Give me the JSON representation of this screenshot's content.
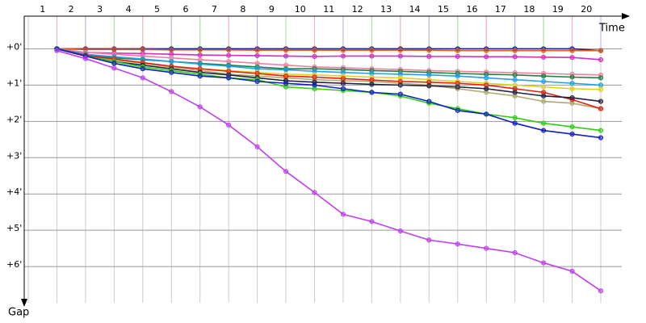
{
  "chart_data": {
    "type": "line",
    "x_label": "Time",
    "y_label": "Gap",
    "categories": [
      "1",
      "2",
      "3",
      "4",
      "5",
      "6",
      "7",
      "8",
      "9",
      "10",
      "11",
      "12",
      "13",
      "14",
      "15",
      "16",
      "17",
      "18",
      "19",
      "20"
    ],
    "ylim": [
      -0.9,
      7.0
    ],
    "yticks": [
      {
        "value": 0,
        "label": "+0'"
      },
      {
        "value": 1,
        "label": "+1'"
      },
      {
        "value": 2,
        "label": "+2'"
      },
      {
        "value": 3,
        "label": "+3'"
      },
      {
        "value": 4,
        "label": "+4'"
      },
      {
        "value": 5,
        "label": "+5'"
      },
      {
        "value": 6,
        "label": "+6'"
      }
    ],
    "grid": true,
    "series": [
      {
        "color": "#1a1aa0",
        "values": [
          0,
          0,
          0,
          0,
          0,
          0,
          0,
          0,
          0,
          0,
          0,
          0,
          0,
          0,
          0,
          0,
          0,
          0,
          0,
          0.05
        ]
      },
      {
        "color": "#e06010",
        "values": [
          0,
          0.02,
          0.02,
          0.02,
          0.03,
          0.03,
          0.03,
          0.04,
          0.04,
          0.04,
          0.04,
          0.04,
          0.04,
          0.04,
          0.05,
          0.05,
          0.05,
          0.05,
          0.05,
          0.05
        ]
      },
      {
        "color": "#d030c0",
        "values": [
          0,
          0.1,
          0.12,
          0.13,
          0.15,
          0.17,
          0.18,
          0.19,
          0.2,
          0.21,
          0.2,
          0.2,
          0.2,
          0.21,
          0.21,
          0.22,
          0.22,
          0.23,
          0.24,
          0.3
        ]
      },
      {
        "color": "#f080a0",
        "values": [
          0,
          0.1,
          0.15,
          0.2,
          0.25,
          0.3,
          0.35,
          0.4,
          0.45,
          0.5,
          0.52,
          0.55,
          0.57,
          0.6,
          0.62,
          0.64,
          0.66,
          0.68,
          0.7,
          0.72
        ]
      },
      {
        "color": "#208040",
        "values": [
          0,
          0.15,
          0.25,
          0.3,
          0.35,
          0.4,
          0.45,
          0.5,
          0.55,
          0.55,
          0.57,
          0.6,
          0.62,
          0.65,
          0.68,
          0.7,
          0.72,
          0.75,
          0.78,
          0.8
        ]
      },
      {
        "color": "#20a0f0",
        "values": [
          0,
          0.15,
          0.22,
          0.28,
          0.35,
          0.42,
          0.48,
          0.55,
          0.58,
          0.62,
          0.65,
          0.68,
          0.7,
          0.72,
          0.75,
          0.8,
          0.85,
          0.9,
          0.95,
          1.0
        ]
      },
      {
        "color": "#e0d020",
        "values": [
          0,
          0.2,
          0.3,
          0.4,
          0.5,
          0.55,
          0.6,
          0.65,
          0.7,
          0.72,
          0.75,
          0.78,
          0.8,
          0.85,
          0.9,
          0.95,
          1.0,
          1.05,
          1.1,
          1.12
        ]
      },
      {
        "color": "#b0a870",
        "values": [
          0,
          0.2,
          0.3,
          0.4,
          0.5,
          0.6,
          0.7,
          0.75,
          0.8,
          0.85,
          0.88,
          0.9,
          0.95,
          1.0,
          1.1,
          1.2,
          1.3,
          1.45,
          1.5,
          1.65
        ]
      },
      {
        "color": "#e02010",
        "values": [
          0,
          0.18,
          0.28,
          0.38,
          0.48,
          0.55,
          0.62,
          0.68,
          0.75,
          0.78,
          0.82,
          0.86,
          0.9,
          0.92,
          0.95,
          1.0,
          1.1,
          1.2,
          1.4,
          1.65
        ]
      },
      {
        "color": "#202040",
        "values": [
          0,
          0.2,
          0.35,
          0.45,
          0.55,
          0.65,
          0.72,
          0.8,
          0.88,
          0.92,
          0.95,
          0.98,
          1.0,
          1.02,
          1.05,
          1.1,
          1.2,
          1.3,
          1.35,
          1.45
        ]
      },
      {
        "color": "#30d010",
        "values": [
          0,
          0.2,
          0.35,
          0.5,
          0.6,
          0.7,
          0.8,
          0.85,
          1.05,
          1.1,
          1.15,
          1.2,
          1.3,
          1.5,
          1.65,
          1.8,
          1.9,
          2.05,
          2.15,
          2.25
        ]
      },
      {
        "color": "#1020c0",
        "values": [
          0,
          0.2,
          0.4,
          0.55,
          0.65,
          0.75,
          0.8,
          0.9,
          0.95,
          1.0,
          1.1,
          1.2,
          1.25,
          1.45,
          1.7,
          1.8,
          2.05,
          2.25,
          2.35,
          2.45
        ]
      },
      {
        "color": "#c040f0",
        "values": [
          0.05,
          0.27,
          0.53,
          0.8,
          1.18,
          1.6,
          2.1,
          2.7,
          3.38,
          3.96,
          4.56,
          4.76,
          5.02,
          5.27,
          5.38,
          5.5,
          5.62,
          5.9,
          6.13,
          6.67
        ]
      }
    ]
  }
}
